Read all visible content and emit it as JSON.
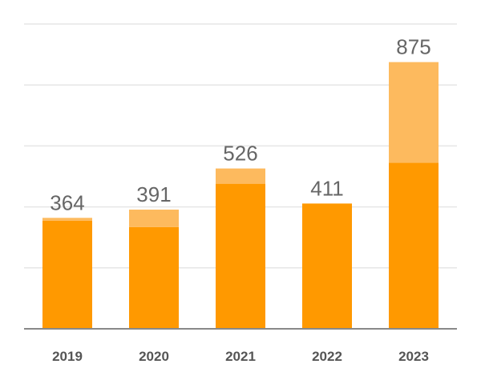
{
  "chart_data": {
    "type": "bar",
    "stacked": true,
    "categories": [
      "2019",
      "2020",
      "2021",
      "2022",
      "2023"
    ],
    "series": [
      {
        "values": [
          355,
          334,
          476,
          411,
          545
        ],
        "color": "#FF9900"
      },
      {
        "values": [
          9,
          57,
          50,
          0,
          330
        ],
        "color": "#FDBA5E"
      }
    ],
    "totals": [
      "364",
      "391",
      "526",
      "411",
      "875"
    ],
    "ylim": [
      0,
      1000
    ],
    "gridlines": [
      200,
      400,
      600,
      800,
      1000
    ],
    "grid": true,
    "title": "",
    "xlabel": "",
    "ylabel": ""
  }
}
